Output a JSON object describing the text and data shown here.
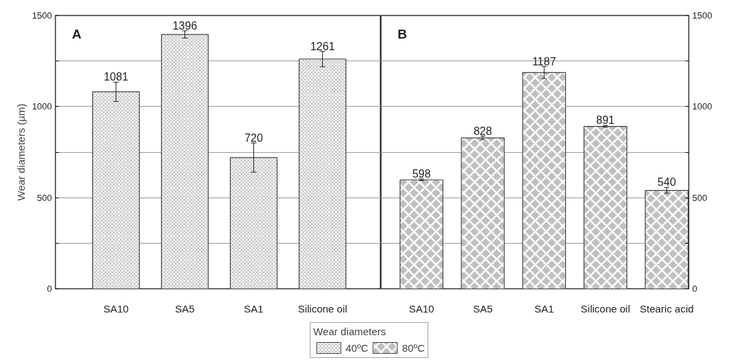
{
  "chart_data": [
    {
      "type": "bar",
      "annotations": [
        "A"
      ],
      "ylabel": "Wear diameters (µm)",
      "legend_title": "Wear diameters",
      "legend": "bottom",
      "grid": "y",
      "data_labels": true,
      "categories": [
        "SA10",
        "SA5",
        "SA1",
        "Silicone oil"
      ],
      "ylim": [
        0,
        1500
      ],
      "yticks": [
        0,
        {
          "value": 250,
          "label": null
        },
        500,
        {
          "value": 750,
          "label": null
        },
        1000,
        {
          "value": 1250,
          "label": null
        },
        1500
      ],
      "series": [
        {
          "name": "40ºC",
          "color": "#c0c0c0",
          "values": [
            1081,
            1396,
            720,
            1261
          ],
          "errors": [
            53,
            20,
            80,
            42
          ]
        }
      ]
    },
    {
      "type": "bar",
      "annotations": [
        "B"
      ],
      "legend": "bottom",
      "grid": "y",
      "data_labels": true,
      "categories": [
        "SA10",
        "SA5",
        "SA1",
        "Silicone oil",
        "Stearic acid"
      ],
      "y2lim": [
        0,
        1500
      ],
      "y2ticks": [
        0,
        {
          "value": 250,
          "label": null
        },
        500,
        {
          "value": 750,
          "label": null
        },
        1000,
        {
          "value": 1250,
          "label": null
        },
        1500
      ],
      "series": [
        {
          "name": "80ºC",
          "color": "#c0c0c0",
          "axis": "y2",
          "values": [
            598,
            828,
            1187,
            891,
            540
          ],
          "errors": [
            5,
            10,
            33,
            5,
            16
          ]
        }
      ]
    }
  ]
}
